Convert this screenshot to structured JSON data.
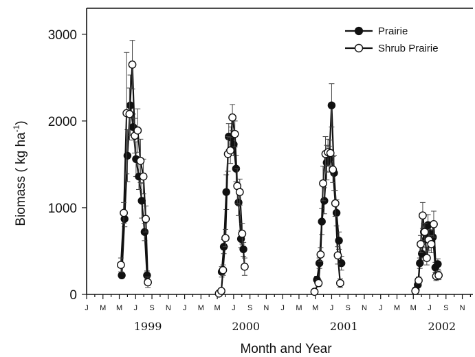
{
  "chart_data": {
    "type": "line",
    "xlabel": "Month and Year",
    "ylabel": "Biomass ( kg ha",
    "ylabel_sup": "-1",
    "ylabel_close": ")",
    "ylim": [
      0,
      3300
    ],
    "yticks": [
      0,
      1000,
      2000,
      3000
    ],
    "ytick_labels": [
      "0",
      "1000",
      "2000",
      "3000"
    ],
    "months": [
      "J",
      "M",
      "M",
      "J",
      "S",
      "N"
    ],
    "years": [
      "1999",
      "2000",
      "2001",
      "2002"
    ],
    "x_unit": "months since Jan 1999",
    "legend_position": "top-right",
    "series": [
      {
        "name": "Prairie",
        "marker": "filled-circle",
        "color": "#111111",
        "points": [
          [
            4.3,
            220,
            30
          ],
          [
            4.65,
            870,
            90
          ],
          [
            5.0,
            1600,
            300
          ],
          [
            5.35,
            2180,
            350
          ],
          [
            5.7,
            1930,
            150
          ],
          [
            6.05,
            1560,
            200
          ],
          [
            6.4,
            1360,
            150
          ],
          [
            6.75,
            1080,
            200
          ],
          [
            7.1,
            720,
            100
          ],
          [
            7.4,
            220,
            50
          ],
          [
            16.55,
            260,
            60
          ],
          [
            16.8,
            550,
            80
          ],
          [
            17.1,
            1180,
            200
          ],
          [
            17.4,
            1820,
            150
          ],
          [
            17.7,
            1810,
            120
          ],
          [
            18.0,
            1730,
            130
          ],
          [
            18.3,
            1450,
            150
          ],
          [
            18.6,
            1060,
            150
          ],
          [
            18.9,
            640,
            100
          ],
          [
            19.2,
            520,
            80
          ],
          [
            28.2,
            170,
            40
          ],
          [
            28.5,
            360,
            60
          ],
          [
            28.8,
            840,
            150
          ],
          [
            29.1,
            1080,
            150
          ],
          [
            29.4,
            1520,
            200
          ],
          [
            29.7,
            1560,
            150
          ],
          [
            30.0,
            2180,
            250
          ],
          [
            30.3,
            1400,
            200
          ],
          [
            30.6,
            940,
            150
          ],
          [
            30.9,
            620,
            100
          ],
          [
            31.2,
            360,
            80
          ],
          [
            40.3,
            50,
            20
          ],
          [
            40.55,
            110,
            30
          ],
          [
            40.8,
            360,
            60
          ],
          [
            41.05,
            470,
            80
          ],
          [
            41.3,
            720,
            100
          ],
          [
            41.55,
            640,
            100
          ],
          [
            41.8,
            800,
            120
          ],
          [
            42.1,
            700,
            100
          ],
          [
            42.4,
            660,
            120
          ],
          [
            42.7,
            310,
            60
          ],
          [
            43.0,
            350,
            60
          ]
        ]
      },
      {
        "name": "Shrub Prairie",
        "marker": "open-circle",
        "color": "#111111",
        "points": [
          [
            4.2,
            340,
            80
          ],
          [
            4.55,
            940,
            120
          ],
          [
            4.9,
            2090,
            700
          ],
          [
            5.25,
            2080,
            300
          ],
          [
            5.6,
            2650,
            280
          ],
          [
            5.9,
            1830,
            200
          ],
          [
            6.25,
            1890,
            250
          ],
          [
            6.6,
            1540,
            250
          ],
          [
            6.95,
            1360,
            200
          ],
          [
            7.25,
            870,
            150
          ],
          [
            7.5,
            140,
            60
          ],
          [
            16.2,
            10,
            10
          ],
          [
            16.5,
            40,
            20
          ],
          [
            16.7,
            280,
            60
          ],
          [
            17.0,
            650,
            100
          ],
          [
            17.3,
            1620,
            200
          ],
          [
            17.6,
            1660,
            150
          ],
          [
            17.85,
            2040,
            150
          ],
          [
            18.15,
            1850,
            150
          ],
          [
            18.45,
            1250,
            200
          ],
          [
            18.75,
            1180,
            150
          ],
          [
            19.05,
            700,
            120
          ],
          [
            19.35,
            320,
            100
          ],
          [
            27.9,
            30,
            20
          ],
          [
            28.4,
            130,
            40
          ],
          [
            28.65,
            460,
            80
          ],
          [
            28.95,
            1280,
            200
          ],
          [
            29.25,
            1620,
            200
          ],
          [
            29.55,
            1640,
            150
          ],
          [
            29.85,
            1630,
            150
          ],
          [
            30.15,
            1440,
            150
          ],
          [
            30.45,
            1050,
            150
          ],
          [
            30.75,
            450,
            100
          ],
          [
            31.05,
            130,
            50
          ],
          [
            40.25,
            40,
            20
          ],
          [
            40.65,
            160,
            40
          ],
          [
            40.9,
            580,
            100
          ],
          [
            41.15,
            910,
            150
          ],
          [
            41.4,
            720,
            100
          ],
          [
            41.65,
            420,
            80
          ],
          [
            41.9,
            630,
            120
          ],
          [
            42.2,
            580,
            100
          ],
          [
            42.5,
            810,
            150
          ],
          [
            42.8,
            210,
            50
          ],
          [
            43.1,
            220,
            50
          ]
        ]
      }
    ]
  }
}
